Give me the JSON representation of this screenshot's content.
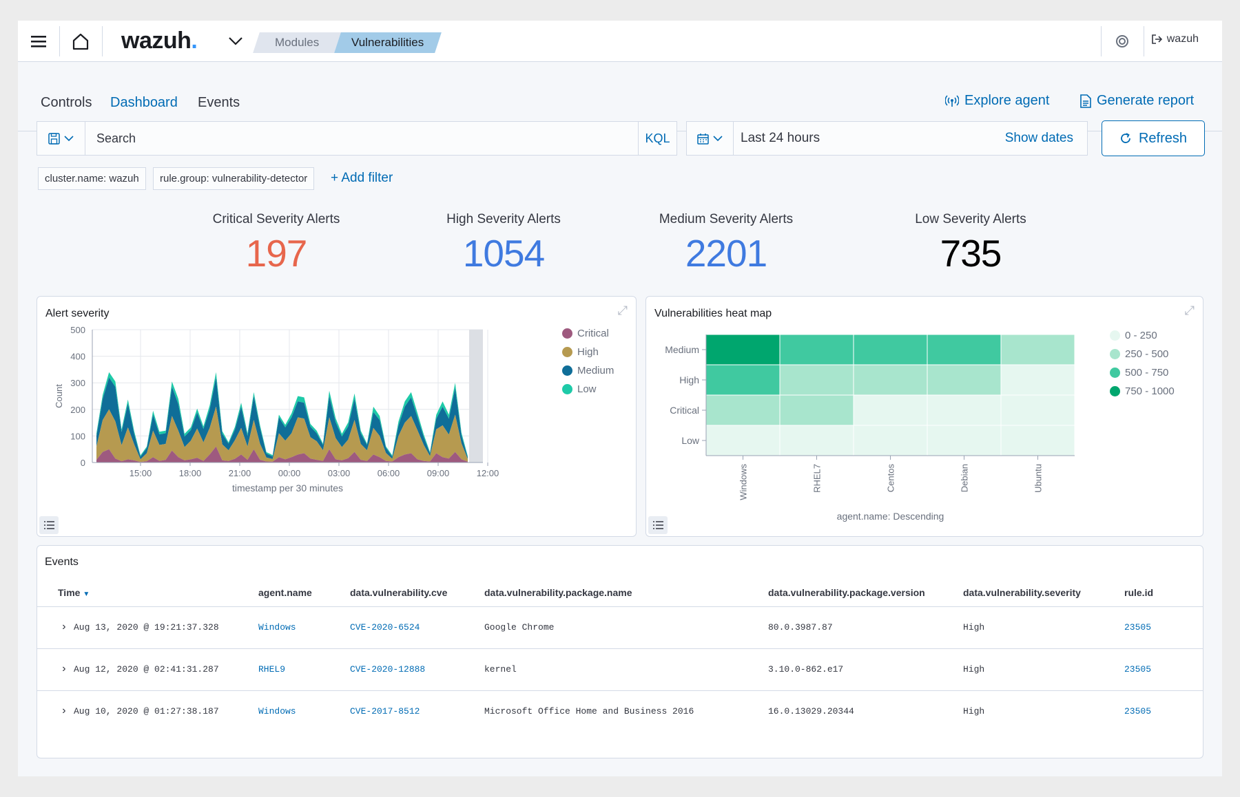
{
  "topbar": {
    "logo": "wazuh",
    "logo_dot": ".",
    "breadcrumb": [
      "Modules",
      "Vulnerabilities"
    ],
    "user": "wazuh"
  },
  "tabs": [
    {
      "label": "Controls"
    },
    {
      "label": "Dashboard"
    },
    {
      "label": "Events"
    }
  ],
  "actions": {
    "explore": "Explore agent",
    "report": "Generate report"
  },
  "search": {
    "placeholder": "Search",
    "language": "KQL"
  },
  "date": {
    "range": "Last 24 hours",
    "show": "Show dates",
    "refresh": "Refresh"
  },
  "filters": [
    "cluster.name: wazuh",
    "rule.group: vulnerability-detector"
  ],
  "add_filter": "+ Add filter",
  "metrics": [
    {
      "label": "Critical Severity Alerts",
      "value": "197",
      "color": "#e7664c"
    },
    {
      "label": "High Severity Alerts",
      "value": "1054",
      "color": "#3f7ae0"
    },
    {
      "label": "Medium Severity Alerts",
      "value": "2201",
      "color": "#3f7ae0"
    },
    {
      "label": "Low Severity Alerts",
      "value": "735",
      "color": "#000000"
    }
  ],
  "colors": {
    "accent": "#006bb4",
    "critical": "#9e5a7f",
    "high": "#b69a50",
    "medium": "#0f6e98",
    "low": "#1ecaa8"
  },
  "chart_data": [
    {
      "type": "area",
      "title": "Alert severity",
      "xlabel": "timestamp per 30 minutes",
      "ylabel": "Count",
      "ylim": [
        0,
        500
      ],
      "yticks": [
        0,
        100,
        200,
        300,
        400,
        500
      ],
      "xtick_labels": [
        "15:00",
        "18:00",
        "21:00",
        "00:00",
        "03:00",
        "06:00",
        "09:00",
        "12:00"
      ],
      "legend": "right",
      "stacked": true,
      "series": [
        {
          "name": "Critical",
          "color": "#9e5a7f",
          "values": [
            10,
            40,
            50,
            15,
            5,
            12,
            8,
            2,
            5,
            20,
            6,
            10,
            45,
            20,
            8,
            12,
            18,
            6,
            30,
            60,
            8,
            6,
            14,
            30,
            10,
            50,
            10,
            4,
            3,
            20,
            12,
            20,
            30,
            35,
            15,
            10,
            6,
            50,
            12,
            8,
            16,
            40,
            10,
            6,
            30,
            20,
            6,
            4,
            20,
            30,
            35,
            12,
            6,
            4,
            35,
            20,
            15,
            40,
            12,
            3
          ]
        },
        {
          "name": "High",
          "color": "#b69a50",
          "values": [
            50,
            120,
            150,
            140,
            60,
            120,
            60,
            10,
            30,
            100,
            60,
            60,
            130,
            100,
            50,
            70,
            110,
            70,
            100,
            150,
            60,
            40,
            70,
            100,
            50,
            110,
            60,
            15,
            10,
            90,
            70,
            90,
            140,
            130,
            80,
            70,
            40,
            120,
            80,
            50,
            70,
            120,
            60,
            40,
            100,
            80,
            30,
            10,
            80,
            120,
            140,
            110,
            60,
            20,
            90,
            120,
            90,
            140,
            60,
            10
          ]
        },
        {
          "name": "Medium",
          "color": "#0f6e98",
          "values": [
            40,
            80,
            120,
            130,
            50,
            90,
            40,
            10,
            20,
            60,
            40,
            40,
            110,
            100,
            40,
            40,
            60,
            50,
            70,
            110,
            40,
            25,
            40,
            80,
            40,
            90,
            60,
            15,
            10,
            60,
            50,
            60,
            60,
            60,
            40,
            30,
            20,
            80,
            60,
            40,
            50,
            80,
            40,
            20,
            60,
            60,
            20,
            8,
            40,
            60,
            70,
            50,
            30,
            10,
            40,
            70,
            60,
            100,
            30,
            6
          ]
        },
        {
          "name": "Low",
          "color": "#1ecaa8",
          "values": [
            10,
            15,
            20,
            20,
            10,
            15,
            10,
            5,
            5,
            15,
            10,
            10,
            20,
            20,
            10,
            10,
            15,
            10,
            15,
            20,
            10,
            5,
            10,
            15,
            10,
            15,
            10,
            5,
            5,
            10,
            10,
            15,
            20,
            20,
            10,
            10,
            5,
            20,
            15,
            10,
            15,
            20,
            10,
            5,
            20,
            15,
            5,
            5,
            15,
            20,
            20,
            15,
            10,
            5,
            15,
            20,
            15,
            20,
            10,
            5
          ]
        }
      ]
    },
    {
      "type": "heatmap",
      "title": "Vulnerabilities heat map",
      "xlabel": "agent.name: Descending",
      "x": [
        "Windows",
        "RHEL7",
        "Centos",
        "Debian",
        "Ubuntu"
      ],
      "y": [
        "Medium",
        "High",
        "Critical",
        "Low"
      ],
      "legend_ranges": [
        "0 - 250",
        "250 - 500",
        "500 - 750",
        "750 - 1000"
      ],
      "legend_colors": [
        "#e6f7f0",
        "#a8e5cd",
        "#40c9a0",
        "#00a66e"
      ],
      "bucket_index": [
        [
          3,
          2,
          2,
          2,
          1
        ],
        [
          2,
          1,
          1,
          1,
          0
        ],
        [
          1,
          1,
          0,
          0,
          0
        ],
        [
          0,
          0,
          0,
          0,
          0
        ]
      ]
    }
  ],
  "events": {
    "title": "Events",
    "columns": [
      "Time",
      "agent.name",
      "data.vulnerability.cve",
      "data.vulnerability.package.name",
      "data.vulnerability.package.version",
      "data.vulnerability.severity",
      "rule.id"
    ],
    "rows": [
      [
        "Aug 13, 2020 @ 19:21:37.328",
        "Windows",
        "CVE-2020-6524",
        "Google Chrome",
        "80.0.3987.87",
        "High",
        "23505"
      ],
      [
        "Aug 12, 2020 @ 02:41:31.287",
        "RHEL9",
        "CVE-2020-12888",
        "kernel",
        "3.10.0-862.e17",
        "High",
        "23505"
      ],
      [
        "Aug 10, 2020 @ 01:27:38.187",
        "Windows",
        "CVE-2017-8512",
        "Microsoft Office Home and Business 2016",
        "16.0.13029.20344",
        "High",
        "23505"
      ]
    ]
  }
}
